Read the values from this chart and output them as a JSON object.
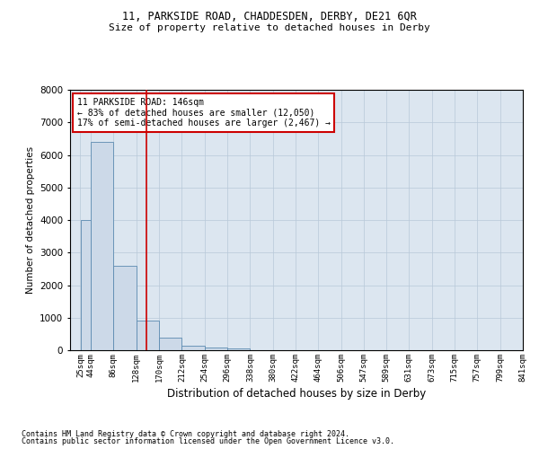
{
  "title_line1": "11, PARKSIDE ROAD, CHADDESDEN, DERBY, DE21 6QR",
  "title_line2": "Size of property relative to detached houses in Derby",
  "xlabel": "Distribution of detached houses by size in Derby",
  "ylabel": "Number of detached properties",
  "bar_color": "#ccd9e8",
  "bar_edge_color": "#5b8ab0",
  "background_color": "#ffffff",
  "plot_bg_color": "#dce6f0",
  "grid_color": "#b8c8d8",
  "annotation_box_color": "#cc0000",
  "vline_color": "#cc0000",
  "footnote1": "Contains HM Land Registry data © Crown copyright and database right 2024.",
  "footnote2": "Contains public sector information licensed under the Open Government Licence v3.0.",
  "annotation_line1": "11 PARKSIDE ROAD: 146sqm",
  "annotation_line2": "← 83% of detached houses are smaller (12,050)",
  "annotation_line3": "17% of semi-detached houses are larger (2,467) →",
  "property_size": 146,
  "categories": [
    "25sqm",
    "44sqm",
    "86sqm",
    "128sqm",
    "170sqm",
    "212sqm",
    "254sqm",
    "296sqm",
    "338sqm",
    "380sqm",
    "422sqm",
    "464sqm",
    "506sqm",
    "547sqm",
    "589sqm",
    "631sqm",
    "673sqm",
    "715sqm",
    "757sqm",
    "799sqm",
    "841sqm"
  ],
  "bin_edges": [
    6,
    25,
    44,
    86,
    128,
    170,
    212,
    254,
    296,
    338,
    380,
    422,
    464,
    506,
    547,
    589,
    631,
    673,
    715,
    757,
    799,
    841
  ],
  "values": [
    5,
    4000,
    6400,
    2600,
    900,
    400,
    150,
    90,
    50,
    0,
    0,
    0,
    0,
    0,
    0,
    0,
    0,
    0,
    0,
    0,
    0
  ],
  "ylim": [
    0,
    8000
  ],
  "yticks": [
    0,
    1000,
    2000,
    3000,
    4000,
    5000,
    6000,
    7000,
    8000
  ]
}
